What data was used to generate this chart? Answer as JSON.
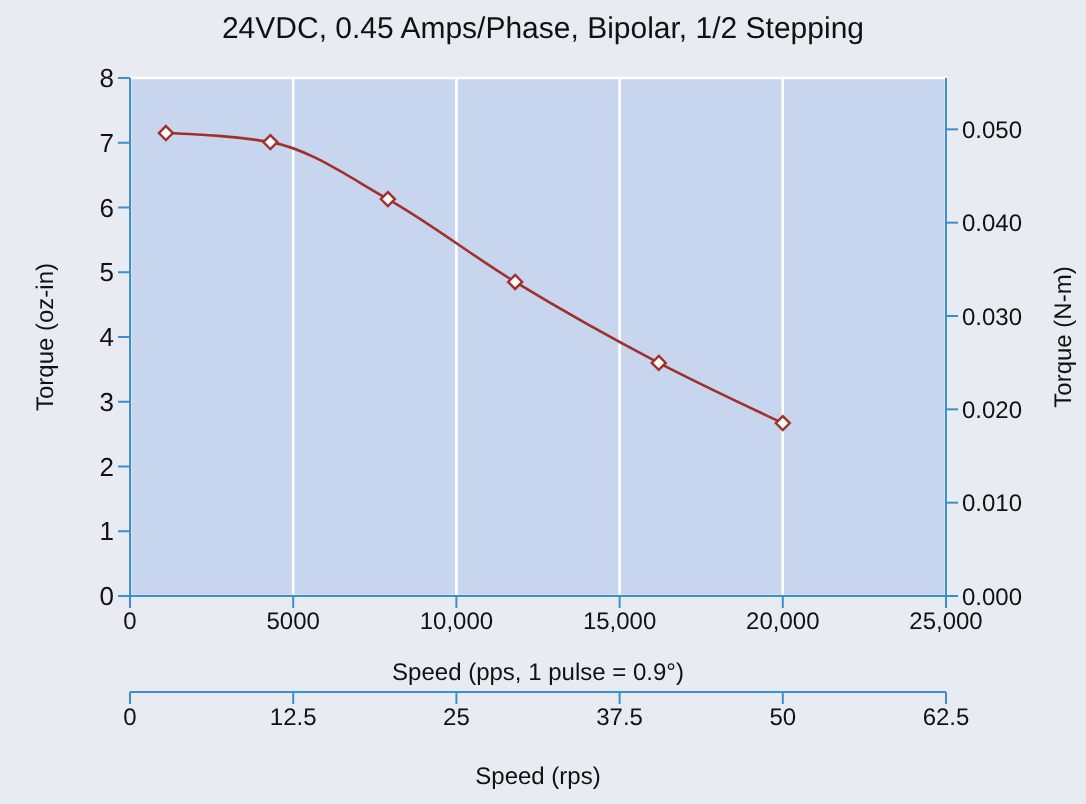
{
  "chart_data": {
    "type": "line",
    "title": "24VDC, 0.45 Amps/Phase, Bipolar, 1/2 Stepping",
    "xlabel": "Speed (pps, 1 pulse = 0.9°)",
    "ylabel": "Torque (oz-in)",
    "y2label": "Torque (N-m)",
    "x2label": "Speed (rps)",
    "x": [
      1100,
      4300,
      7900,
      11800,
      16200,
      20000
    ],
    "series": [
      {
        "color": "#a0302a",
        "values": [
          7.15,
          7.01,
          6.13,
          4.85,
          3.6,
          2.67
        ]
      }
    ],
    "xlim": [
      0,
      25000
    ],
    "xticks": [
      0,
      5000,
      {
        "value": 10000,
        "label": "10,000"
      },
      {
        "value": 15000,
        "label": "15,000"
      },
      {
        "value": 20000,
        "label": "20,000"
      },
      {
        "value": 25000,
        "label": "25,000"
      }
    ],
    "ylim": [
      0,
      8
    ],
    "yticks": [
      0,
      1,
      2,
      3,
      4,
      5,
      6,
      7,
      8
    ],
    "y2lim": [
      0,
      0.0555
    ],
    "y2ticks": [
      {
        "value": 0,
        "label": "0.000"
      },
      {
        "value": 0.01,
        "label": "0.010"
      },
      {
        "value": 0.02,
        "label": "0.020"
      },
      {
        "value": 0.03,
        "label": "0.030"
      },
      {
        "value": 0.04,
        "label": "0.040"
      },
      {
        "value": 0.05,
        "label": "0.050"
      }
    ],
    "x2lim": [
      0,
      62.5
    ],
    "x2ticks": [
      0,
      12.5,
      25,
      37.5,
      50,
      62.5
    ],
    "grid": true,
    "marker": "diamond",
    "line_style": "solid"
  }
}
